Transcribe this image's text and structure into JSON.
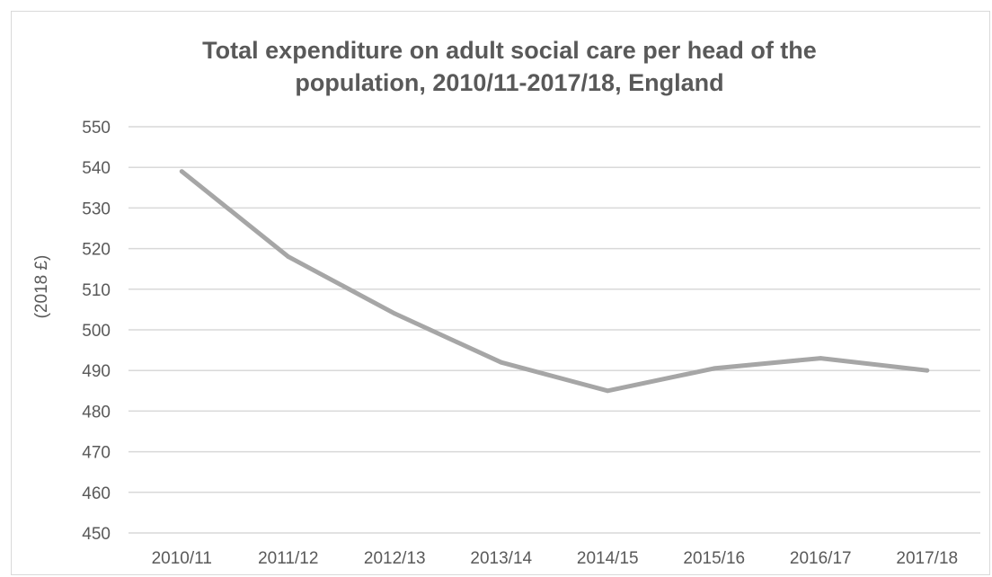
{
  "chart_data": {
    "type": "line",
    "title_lines": [
      "Total expenditure on adult social care per head of the",
      "population, 2010/11-2017/18, England"
    ],
    "xlabel": "",
    "ylabel": "(2018 £)",
    "categories": [
      "2010/11",
      "2011/12",
      "2012/13",
      "2013/14",
      "2014/15",
      "2015/16",
      "2016/17",
      "2017/18"
    ],
    "series": [
      {
        "values": [
          539,
          518,
          504,
          492,
          485,
          490.5,
          493,
          490
        ]
      }
    ],
    "ylim": [
      450,
      550
    ],
    "yticks": [
      450,
      460,
      470,
      480,
      490,
      500,
      510,
      520,
      530,
      540,
      550
    ],
    "grid": true,
    "legend": "none",
    "colors": {
      "line": "#a6a6a6",
      "grid": "#d9d9d9",
      "text": "#595959",
      "border": "#d9d9d9"
    }
  }
}
